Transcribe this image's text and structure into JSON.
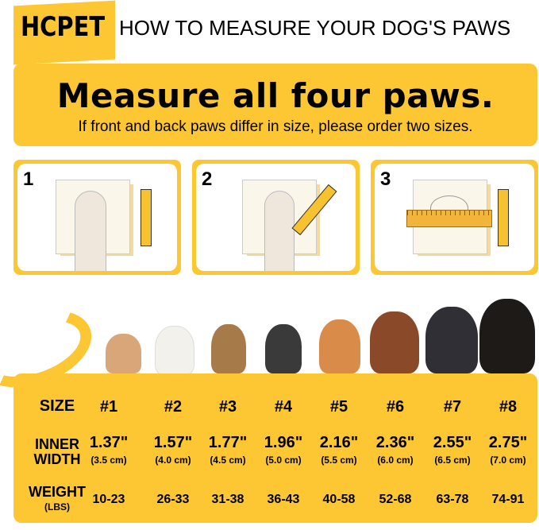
{
  "header": {
    "brand": "HCPET",
    "title": "HOW TO MEASURE YOUR DOG'S PAWS"
  },
  "banner": {
    "title": "Measure all four paws.",
    "subtitle": "If front and back paws differ in size, please order two sizes."
  },
  "steps": [
    {
      "number": "1"
    },
    {
      "number": "2"
    },
    {
      "number": "3"
    }
  ],
  "colors": {
    "accent": "#FCC733",
    "text": "#000000"
  },
  "table": {
    "size_label": "SIZE",
    "width_label_1": "INNER",
    "width_label_2": "WIDTH",
    "weight_label": "WEIGHT",
    "weight_unit": "(LBS)",
    "columns": [
      {
        "size": "#1",
        "inches": "1.37\"",
        "cm": "(3.5 cm)",
        "weight": "10-23"
      },
      {
        "size": "#2",
        "inches": "1.57\"",
        "cm": "(4.0 cm)",
        "weight": "26-33"
      },
      {
        "size": "#3",
        "inches": "1.77\"",
        "cm": "(4.5 cm)",
        "weight": "31-38"
      },
      {
        "size": "#4",
        "inches": "1.96\"",
        "cm": "(5.0 cm)",
        "weight": "36-43"
      },
      {
        "size": "#5",
        "inches": "2.16\"",
        "cm": "(5.5 cm)",
        "weight": "40-58"
      },
      {
        "size": "#6",
        "inches": "2.36\"",
        "cm": "(6.0 cm)",
        "weight": "52-68"
      },
      {
        "size": "#7",
        "inches": "2.55\"",
        "cm": "(6.5 cm)",
        "weight": "63-78"
      },
      {
        "size": "#8",
        "inches": "2.75\"",
        "cm": "(7.0 cm)",
        "weight": "74-91"
      }
    ]
  }
}
